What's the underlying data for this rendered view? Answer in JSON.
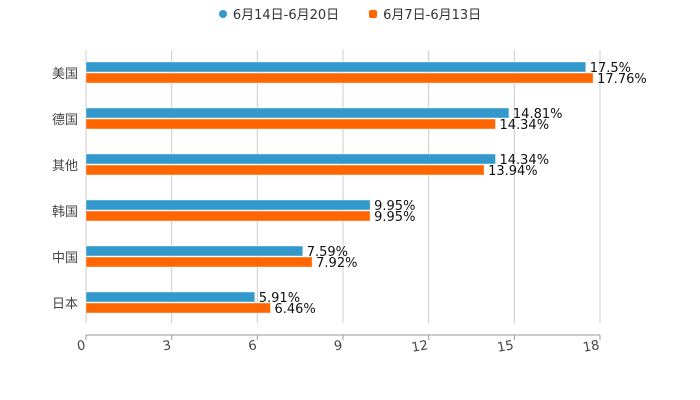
{
  "chart_data": {
    "type": "bar",
    "orientation": "horizontal",
    "title": "",
    "xlabel": "",
    "ylabel": "",
    "categories": [
      "美国",
      "德国",
      "其他",
      "韩国",
      "中国",
      "日本"
    ],
    "series": [
      {
        "name": "6月14日-6月20日",
        "color": "#3399cc",
        "values": [
          17.5,
          14.81,
          14.34,
          9.95,
          7.59,
          5.91
        ],
        "labels": [
          "17.5%",
          "14.81%",
          "14.34%",
          "9.95%",
          "7.59%",
          "5.91%"
        ]
      },
      {
        "name": "6月7日-6月13日",
        "color": "#ff6600",
        "values": [
          17.76,
          14.34,
          13.94,
          9.95,
          7.92,
          6.46
        ],
        "labels": [
          "17.76%",
          "14.34%",
          "13.94%",
          "9.95%",
          "7.92%",
          "6.46%"
        ]
      }
    ],
    "xlim": [
      0,
      18
    ],
    "xticks": [
      "0",
      "3",
      "6",
      "9",
      "12",
      "15",
      "18"
    ],
    "grid": true,
    "legend_position": "top-center"
  }
}
